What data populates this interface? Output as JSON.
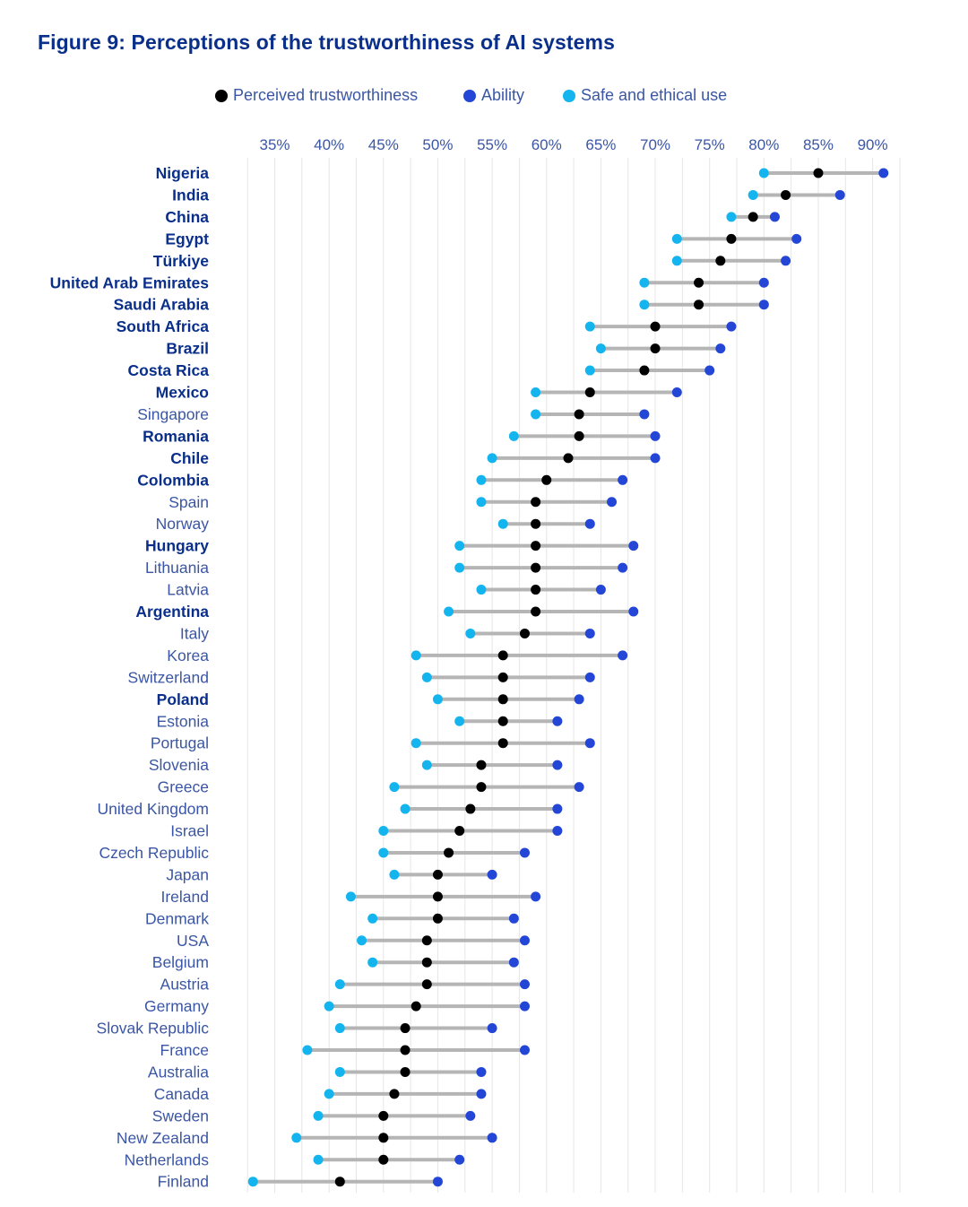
{
  "title": "Figure 9: Perceptions of the trustworthiness of AI systems",
  "legend": {
    "perceived": "Perceived trustworthiness",
    "ability": "Ability",
    "safe": "Safe and ethical use"
  },
  "colors": {
    "perceived": "#000000",
    "ability": "#2446d6",
    "safe": "#14b4ef",
    "range_line": "#b5b5b5",
    "grid": "#e6e6e6",
    "axis_text": "#3a56a5",
    "title": "#0a2f8a",
    "label_bold": "#0a2f8a",
    "label_normal": "#3a56a5"
  },
  "chart_data": {
    "type": "dot-range",
    "title": "Figure 9: Perceptions of the trustworthiness of AI systems",
    "x_ticks": [
      "35%",
      "40%",
      "45%",
      "50%",
      "55%",
      "60%",
      "65%",
      "70%",
      "75%",
      "80%",
      "85%",
      "90%"
    ],
    "xlim": [
      31,
      93
    ],
    "series_names": [
      "Perceived trustworthiness",
      "Ability",
      "Safe and ethical use"
    ],
    "rows": [
      {
        "country": "Nigeria",
        "bold": true,
        "perceived": 85,
        "ability": 91,
        "safe": 80
      },
      {
        "country": "India",
        "bold": true,
        "perceived": 82,
        "ability": 87,
        "safe": 79
      },
      {
        "country": "China",
        "bold": true,
        "perceived": 79,
        "ability": 81,
        "safe": 77
      },
      {
        "country": "Egypt",
        "bold": true,
        "perceived": 77,
        "ability": 83,
        "safe": 72
      },
      {
        "country": "Türkiye",
        "bold": true,
        "perceived": 76,
        "ability": 82,
        "safe": 72
      },
      {
        "country": "United Arab Emirates",
        "bold": true,
        "perceived": 74,
        "ability": 80,
        "safe": 69
      },
      {
        "country": "Saudi Arabia",
        "bold": true,
        "perceived": 74,
        "ability": 80,
        "safe": 69
      },
      {
        "country": "South Africa",
        "bold": true,
        "perceived": 70,
        "ability": 77,
        "safe": 64
      },
      {
        "country": "Brazil",
        "bold": true,
        "perceived": 70,
        "ability": 76,
        "safe": 65
      },
      {
        "country": "Costa Rica",
        "bold": true,
        "perceived": 69,
        "ability": 75,
        "safe": 64
      },
      {
        "country": "Mexico",
        "bold": true,
        "perceived": 64,
        "ability": 72,
        "safe": 59
      },
      {
        "country": "Singapore",
        "bold": false,
        "perceived": 63,
        "ability": 69,
        "safe": 59
      },
      {
        "country": "Romania",
        "bold": true,
        "perceived": 63,
        "ability": 70,
        "safe": 57
      },
      {
        "country": "Chile",
        "bold": true,
        "perceived": 62,
        "ability": 70,
        "safe": 55
      },
      {
        "country": "Colombia",
        "bold": true,
        "perceived": 60,
        "ability": 67,
        "safe": 54
      },
      {
        "country": "Spain",
        "bold": false,
        "perceived": 59,
        "ability": 66,
        "safe": 54
      },
      {
        "country": "Norway",
        "bold": false,
        "perceived": 59,
        "ability": 64,
        "safe": 56
      },
      {
        "country": "Hungary",
        "bold": true,
        "perceived": 59,
        "ability": 68,
        "safe": 52
      },
      {
        "country": "Lithuania",
        "bold": false,
        "perceived": 59,
        "ability": 67,
        "safe": 52
      },
      {
        "country": "Latvia",
        "bold": false,
        "perceived": 59,
        "ability": 65,
        "safe": 54
      },
      {
        "country": "Argentina",
        "bold": true,
        "perceived": 59,
        "ability": 68,
        "safe": 51
      },
      {
        "country": "Italy",
        "bold": false,
        "perceived": 58,
        "ability": 64,
        "safe": 53
      },
      {
        "country": "Korea",
        "bold": false,
        "perceived": 56,
        "ability": 67,
        "safe": 48
      },
      {
        "country": "Switzerland",
        "bold": false,
        "perceived": 56,
        "ability": 64,
        "safe": 49
      },
      {
        "country": "Poland",
        "bold": true,
        "perceived": 56,
        "ability": 63,
        "safe": 50
      },
      {
        "country": "Estonia",
        "bold": false,
        "perceived": 56,
        "ability": 61,
        "safe": 52
      },
      {
        "country": "Portugal",
        "bold": false,
        "perceived": 56,
        "ability": 64,
        "safe": 48
      },
      {
        "country": "Slovenia",
        "bold": false,
        "perceived": 54,
        "ability": 61,
        "safe": 49
      },
      {
        "country": "Greece",
        "bold": false,
        "perceived": 54,
        "ability": 63,
        "safe": 46
      },
      {
        "country": "United Kingdom",
        "bold": false,
        "perceived": 53,
        "ability": 61,
        "safe": 47
      },
      {
        "country": "Israel",
        "bold": false,
        "perceived": 52,
        "ability": 61,
        "safe": 45
      },
      {
        "country": "Czech Republic",
        "bold": false,
        "perceived": 51,
        "ability": 58,
        "safe": 45
      },
      {
        "country": "Japan",
        "bold": false,
        "perceived": 50,
        "ability": 55,
        "safe": 46
      },
      {
        "country": "Ireland",
        "bold": false,
        "perceived": 50,
        "ability": 59,
        "safe": 42
      },
      {
        "country": "Denmark",
        "bold": false,
        "perceived": 50,
        "ability": 57,
        "safe": 44
      },
      {
        "country": "USA",
        "bold": false,
        "perceived": 49,
        "ability": 58,
        "safe": 43
      },
      {
        "country": "Belgium",
        "bold": false,
        "perceived": 49,
        "ability": 57,
        "safe": 44
      },
      {
        "country": "Austria",
        "bold": false,
        "perceived": 49,
        "ability": 58,
        "safe": 41
      },
      {
        "country": "Germany",
        "bold": false,
        "perceived": 48,
        "ability": 58,
        "safe": 40
      },
      {
        "country": "Slovak Republic",
        "bold": false,
        "perceived": 47,
        "ability": 55,
        "safe": 41
      },
      {
        "country": "France",
        "bold": false,
        "perceived": 47,
        "ability": 58,
        "safe": 38
      },
      {
        "country": "Australia",
        "bold": false,
        "perceived": 47,
        "ability": 54,
        "safe": 41
      },
      {
        "country": "Canada",
        "bold": false,
        "perceived": 46,
        "ability": 54,
        "safe": 40
      },
      {
        "country": "Sweden",
        "bold": false,
        "perceived": 45,
        "ability": 53,
        "safe": 39
      },
      {
        "country": "New Zealand",
        "bold": false,
        "perceived": 45,
        "ability": 55,
        "safe": 37
      },
      {
        "country": "Netherlands",
        "bold": false,
        "perceived": 45,
        "ability": 52,
        "safe": 39
      },
      {
        "country": "Finland",
        "bold": false,
        "perceived": 41,
        "ability": 50,
        "safe": 33
      }
    ]
  }
}
